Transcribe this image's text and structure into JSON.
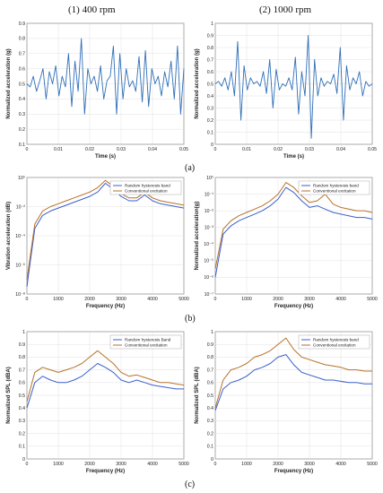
{
  "columns": {
    "left": "(1) 400 rpm",
    "right": "(2) 1000 rpm"
  },
  "row_labels": {
    "a": "(a)",
    "b": "(b)",
    "c": "(c)"
  },
  "colors": {
    "random": "#3a5fcd",
    "conventional": "#b5722a",
    "signal": "#2f6fb8"
  },
  "chart_data": [
    {
      "id": "a1",
      "type": "line",
      "xlabel": "Time (s)",
      "ylabel": "Normalized acceleration (g)",
      "xlim": [
        0,
        0.05
      ],
      "ylim": [
        0.1,
        0.9
      ],
      "scale": "linear",
      "xticks": [
        "0",
        "0.01",
        "0.02",
        "0.03",
        "0.04",
        "0.05"
      ],
      "yticks": [
        "0.1",
        "0.2",
        "0.3",
        "0.4",
        "0.5",
        "0.6",
        "0.7",
        "0.8",
        "0.9"
      ],
      "series": [
        {
          "values": [
            0.5,
            0.48,
            0.55,
            0.45,
            0.52,
            0.6,
            0.4,
            0.58,
            0.5,
            0.62,
            0.42,
            0.55,
            0.48,
            0.7,
            0.35,
            0.65,
            0.45,
            0.8,
            0.3,
            0.6,
            0.5,
            0.55,
            0.45,
            0.62,
            0.4,
            0.52,
            0.55,
            0.75,
            0.3,
            0.7,
            0.4,
            0.6,
            0.48,
            0.52,
            0.45,
            0.68,
            0.38,
            0.72,
            0.35,
            0.6,
            0.5,
            0.55,
            0.42,
            0.58,
            0.48,
            0.65,
            0.4,
            0.75,
            0.3,
            0.6
          ]
        }
      ]
    },
    {
      "id": "a2",
      "type": "line",
      "xlabel": "Time (s)",
      "ylabel": "Normalized acceleration (g)",
      "xlim": [
        0,
        0.05
      ],
      "ylim": [
        0,
        1
      ],
      "scale": "linear",
      "xticks": [
        "0",
        "0.01",
        "0.02",
        "0.03",
        "0.04",
        "0.05"
      ],
      "yticks": [
        "0",
        "0.1",
        "0.2",
        "0.3",
        "0.4",
        "0.5",
        "0.6",
        "0.7",
        "0.8",
        "0.9",
        "1"
      ],
      "series": [
        {
          "values": [
            0.5,
            0.52,
            0.48,
            0.55,
            0.45,
            0.6,
            0.4,
            0.85,
            0.2,
            0.65,
            0.45,
            0.55,
            0.5,
            0.52,
            0.48,
            0.6,
            0.42,
            0.7,
            0.3,
            0.62,
            0.45,
            0.5,
            0.48,
            0.55,
            0.45,
            0.72,
            0.25,
            0.6,
            0.4,
            0.9,
            0.05,
            0.7,
            0.4,
            0.55,
            0.48,
            0.52,
            0.5,
            0.58,
            0.42,
            0.8,
            0.2,
            0.65,
            0.45,
            0.55,
            0.5,
            0.6,
            0.4,
            0.52,
            0.48,
            0.5
          ]
        }
      ]
    },
    {
      "id": "b1",
      "type": "line",
      "xlabel": "Frequency (Hz)",
      "ylabel": "Vibration acceleration (dB)",
      "xlim": [
        0,
        5000
      ],
      "ylim": [
        -8,
        0
      ],
      "scale": "log",
      "xticks": [
        "0",
        "1000",
        "2000",
        "3000",
        "4000",
        "5000"
      ],
      "yticks": [
        "10⁰",
        "10⁻²",
        "10⁻⁴",
        "10⁻⁶",
        "10⁻⁸"
      ],
      "legend": [
        "Random hysteresis band",
        "Conventional excitation"
      ],
      "legend_position": "top-right",
      "series": [
        {
          "name": "Random hysteresis band",
          "values": [
            -7.5,
            -3.5,
            -2.6,
            -2.3,
            -2.1,
            -1.9,
            -1.7,
            -1.5,
            -1.3,
            -1.0,
            -0.4,
            -0.8,
            -1.3,
            -1.6,
            -1.6,
            -1.2,
            -1.6,
            -1.8,
            -1.9,
            -2.0,
            -2.1
          ]
        },
        {
          "name": "Conventional excitation",
          "values": [
            -7.0,
            -3.2,
            -2.3,
            -2.0,
            -1.8,
            -1.6,
            -1.4,
            -1.2,
            -1.0,
            -0.7,
            -0.2,
            -0.6,
            -1.1,
            -1.4,
            -1.4,
            -1.0,
            -1.4,
            -1.6,
            -1.7,
            -1.8,
            -1.9
          ]
        }
      ]
    },
    {
      "id": "b2",
      "type": "line",
      "xlabel": "Frequency (Hz)",
      "ylabel": "Normalized acceleration(g)",
      "xlim": [
        0,
        5000
      ],
      "ylim": [
        -7,
        0
      ],
      "scale": "log",
      "xticks": [
        "0",
        "1000",
        "2000",
        "3000",
        "4000",
        "5000"
      ],
      "yticks": [
        "10⁰",
        "10⁻¹",
        "10⁻²",
        "10⁻³",
        "10⁻⁴",
        "10⁻⁵",
        "10⁻⁶",
        "10⁻⁷"
      ],
      "legend": [
        "Random hysteresis band",
        "Conventional excitation"
      ],
      "legend_position": "top-right",
      "series": [
        {
          "name": "Random hysteresis band",
          "values": [
            -6.0,
            -3.4,
            -2.9,
            -2.6,
            -2.4,
            -2.2,
            -2.0,
            -1.7,
            -1.3,
            -0.6,
            -0.9,
            -1.4,
            -1.8,
            -1.7,
            -1.9,
            -2.1,
            -2.2,
            -2.3,
            -2.4,
            -2.4,
            -2.5
          ]
        },
        {
          "name": "Conventional excitation",
          "values": [
            -5.5,
            -3.1,
            -2.6,
            -2.3,
            -2.1,
            -1.9,
            -1.7,
            -1.4,
            -1.0,
            -0.3,
            -0.6,
            -1.1,
            -1.5,
            -1.4,
            -1.0,
            -1.6,
            -1.8,
            -1.9,
            -2.0,
            -2.0,
            -2.1
          ]
        }
      ]
    },
    {
      "id": "c1",
      "type": "line",
      "xlabel": "Frequency (Hz)",
      "ylabel": "Normalized SPL (dBA)",
      "xlim": [
        0,
        5000
      ],
      "ylim": [
        0,
        1
      ],
      "scale": "linear",
      "xticks": [
        "0",
        "1000",
        "2000",
        "3000",
        "4000",
        "5000"
      ],
      "yticks": [
        "0",
        "0.1",
        "0.2",
        "0.3",
        "0.4",
        "0.5",
        "0.6",
        "0.7",
        "0.8",
        "0.9",
        "1"
      ],
      "legend": [
        "Random hysteresis Band",
        "Conventional excitation"
      ],
      "legend_position": "top-right",
      "series": [
        {
          "name": "Random hysteresis Band",
          "values": [
            0.4,
            0.6,
            0.65,
            0.62,
            0.6,
            0.6,
            0.62,
            0.65,
            0.7,
            0.75,
            0.72,
            0.68,
            0.62,
            0.6,
            0.62,
            0.6,
            0.58,
            0.57,
            0.56,
            0.55,
            0.55
          ]
        },
        {
          "name": "Conventional excitation",
          "values": [
            0.45,
            0.68,
            0.72,
            0.7,
            0.68,
            0.7,
            0.72,
            0.75,
            0.8,
            0.85,
            0.8,
            0.75,
            0.68,
            0.65,
            0.66,
            0.64,
            0.62,
            0.6,
            0.6,
            0.59,
            0.58
          ]
        }
      ]
    },
    {
      "id": "c2",
      "type": "line",
      "xlabel": "Frequency (Hz)",
      "ylabel": "Normalized SPL (dBA)",
      "xlim": [
        0,
        5000
      ],
      "ylim": [
        0,
        1
      ],
      "scale": "linear",
      "xticks": [
        "0",
        "1000",
        "2000",
        "3000",
        "4000",
        "5000"
      ],
      "yticks": [
        "0",
        "0.1",
        "0.2",
        "0.3",
        "0.4",
        "0.5",
        "0.6",
        "0.7",
        "0.8",
        "0.9",
        "1"
      ],
      "legend": [
        "Random hysteresis band",
        "Conventional excitation"
      ],
      "legend_position": "top-right",
      "series": [
        {
          "name": "Random hysteresis band",
          "values": [
            0.38,
            0.55,
            0.6,
            0.62,
            0.65,
            0.7,
            0.72,
            0.75,
            0.8,
            0.82,
            0.74,
            0.68,
            0.66,
            0.64,
            0.62,
            0.62,
            0.61,
            0.6,
            0.6,
            0.59,
            0.59
          ]
        },
        {
          "name": "Conventional excitation",
          "values": [
            0.4,
            0.62,
            0.7,
            0.72,
            0.75,
            0.8,
            0.82,
            0.85,
            0.9,
            0.95,
            0.86,
            0.8,
            0.78,
            0.76,
            0.74,
            0.73,
            0.72,
            0.7,
            0.7,
            0.69,
            0.69
          ]
        }
      ]
    }
  ]
}
